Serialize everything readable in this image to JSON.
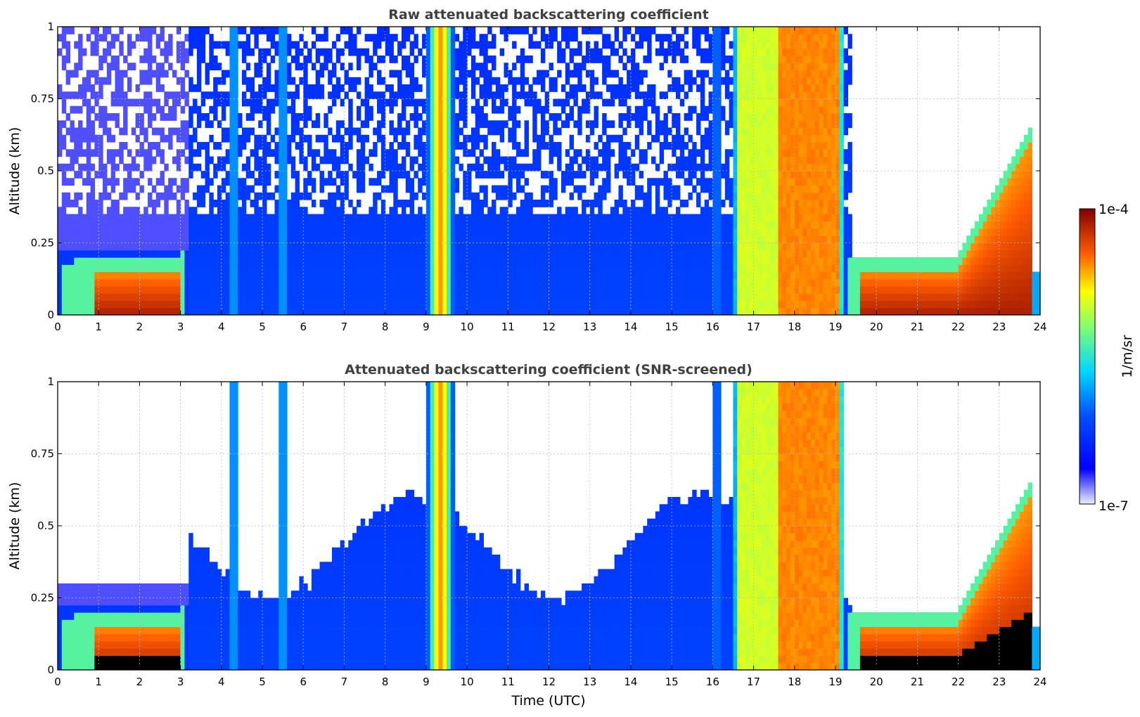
{
  "chart_data": [
    {
      "type": "heatmap",
      "title": "Raw attenuated backscattering coefficient",
      "xlabel": "",
      "ylabel": "Altitude (km)",
      "xlim": [
        0,
        24
      ],
      "ylim": [
        0,
        1
      ],
      "x_ticks": [
        "0",
        "1",
        "2",
        "3",
        "4",
        "5",
        "6",
        "7",
        "8",
        "9",
        "10",
        "11",
        "12",
        "13",
        "14",
        "15",
        "16",
        "17",
        "18",
        "19",
        "20",
        "21",
        "22",
        "23",
        "24"
      ],
      "y_ticks": [
        "0",
        "0.25",
        "0.5",
        "0.75",
        "1"
      ],
      "grid": true,
      "screened": false
    },
    {
      "type": "heatmap",
      "title": "Attenuated backscattering coefficient (SNR-screened)",
      "xlabel": "Time (UTC)",
      "ylabel": "Altitude (km)",
      "xlim": [
        0,
        24
      ],
      "ylim": [
        0,
        1
      ],
      "x_ticks": [
        "0",
        "1",
        "2",
        "3",
        "4",
        "5",
        "6",
        "7",
        "8",
        "9",
        "10",
        "11",
        "12",
        "13",
        "14",
        "15",
        "16",
        "17",
        "18",
        "19",
        "20",
        "21",
        "22",
        "23",
        "24"
      ],
      "y_ticks": [
        "0",
        "0.25",
        "0.5",
        "0.75",
        "1"
      ],
      "grid": true,
      "screened": true
    }
  ],
  "colorbar": {
    "label": "1/m/sr",
    "min_label": "1e-7",
    "max_label": "1e-4",
    "min": 1e-07,
    "max": 0.0001,
    "scale": "log",
    "colormap": "jet"
  }
}
